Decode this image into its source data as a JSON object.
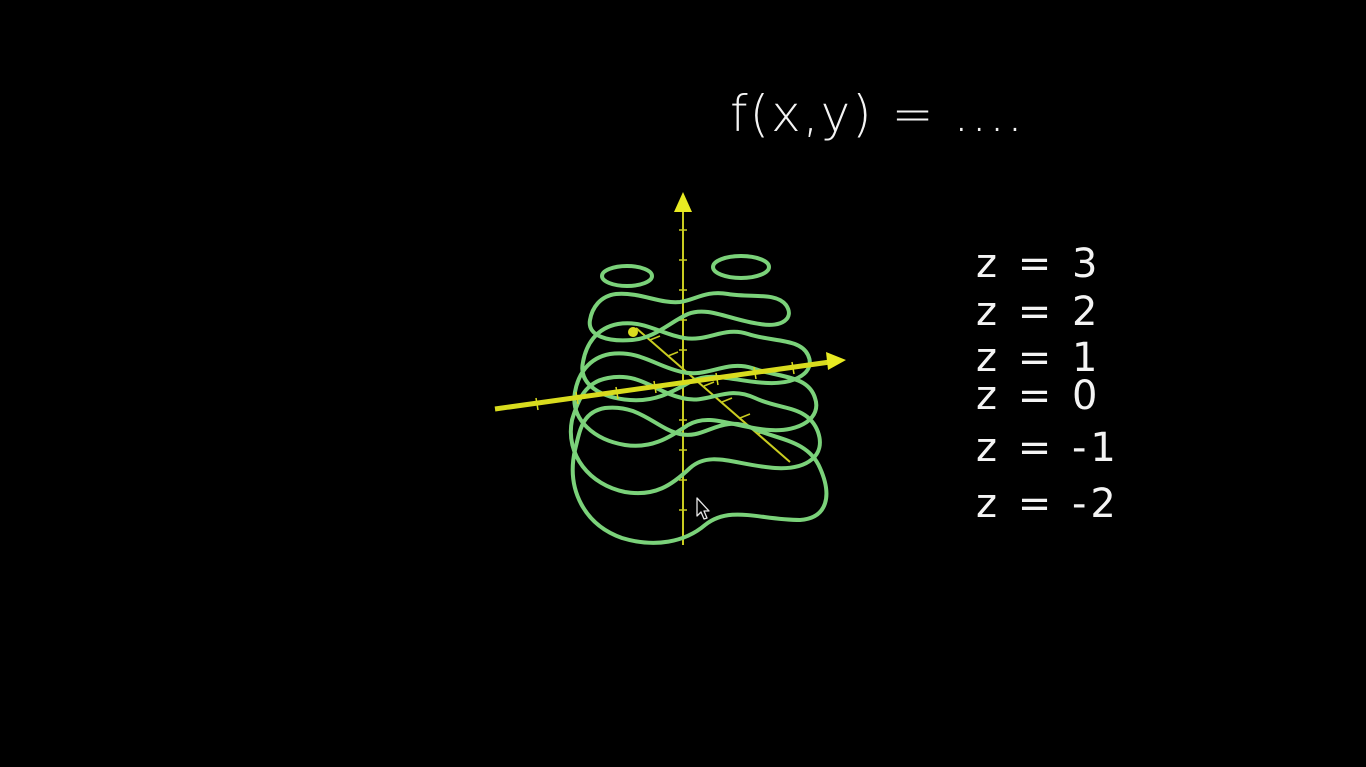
{
  "function_label": "f(x,y) = ....",
  "level_labels": [
    "z = 3",
    "z = 2",
    "z = 1",
    "z = 0",
    "z = -1",
    "z = -2"
  ],
  "colors": {
    "background": "#000000",
    "contour": "#7bd27a",
    "axis": "#d9dc1e",
    "handwriting": "#f4f4f4"
  },
  "icons": {
    "cursor": "mouse-pointer-icon"
  }
}
